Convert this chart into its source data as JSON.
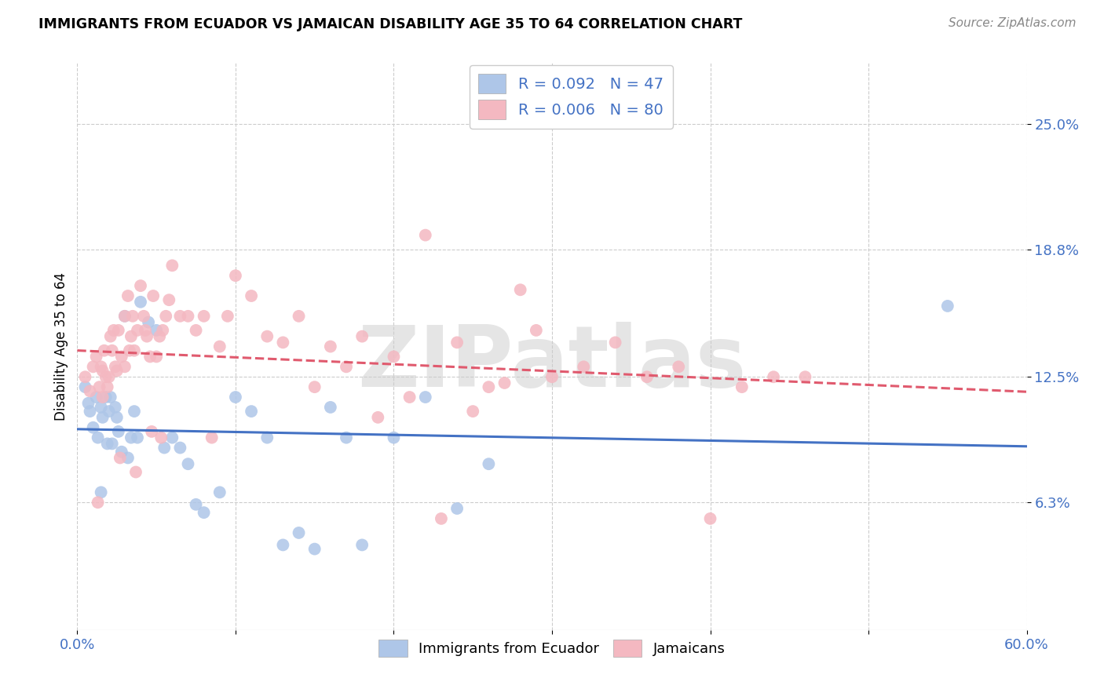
{
  "title": "IMMIGRANTS FROM ECUADOR VS JAMAICAN DISABILITY AGE 35 TO 64 CORRELATION CHART",
  "source": "Source: ZipAtlas.com",
  "ylabel": "Disability Age 35 to 64",
  "xlim": [
    0.0,
    0.6
  ],
  "ylim": [
    0.0,
    0.28
  ],
  "yticks": [
    0.063,
    0.125,
    0.188,
    0.25
  ],
  "ytick_labels": [
    "6.3%",
    "12.5%",
    "18.8%",
    "25.0%"
  ],
  "xticks": [
    0.0,
    0.1,
    0.2,
    0.3,
    0.4,
    0.5,
    0.6
  ],
  "xtick_labels": [
    "0.0%",
    "",
    "",
    "",
    "",
    "",
    "60.0%"
  ],
  "ecuador_color": "#aec6e8",
  "jamaica_color": "#f4b8c1",
  "ecuador_R": 0.092,
  "ecuador_N": 47,
  "jamaica_R": 0.006,
  "jamaica_N": 80,
  "trend_ecuador_color": "#4472c4",
  "trend_jamaica_color": "#e05a6e",
  "watermark": "ZIPatlas",
  "legend_label_ecuador": "Immigrants from Ecuador",
  "legend_label_jamaica": "Jamaicans",
  "ecuador_x": [
    0.005,
    0.007,
    0.008,
    0.01,
    0.012,
    0.013,
    0.015,
    0.016,
    0.018,
    0.019,
    0.02,
    0.021,
    0.022,
    0.024,
    0.025,
    0.026,
    0.028,
    0.03,
    0.032,
    0.034,
    0.036,
    0.038,
    0.04,
    0.045,
    0.05,
    0.055,
    0.06,
    0.065,
    0.07,
    0.075,
    0.08,
    0.09,
    0.1,
    0.11,
    0.12,
    0.13,
    0.14,
    0.15,
    0.16,
    0.17,
    0.18,
    0.2,
    0.22,
    0.24,
    0.26,
    0.55,
    0.015
  ],
  "ecuador_y": [
    0.12,
    0.112,
    0.108,
    0.1,
    0.115,
    0.095,
    0.11,
    0.105,
    0.115,
    0.092,
    0.108,
    0.115,
    0.092,
    0.11,
    0.105,
    0.098,
    0.088,
    0.155,
    0.085,
    0.095,
    0.108,
    0.095,
    0.162,
    0.152,
    0.148,
    0.09,
    0.095,
    0.09,
    0.082,
    0.062,
    0.058,
    0.068,
    0.115,
    0.108,
    0.095,
    0.042,
    0.048,
    0.04,
    0.11,
    0.095,
    0.042,
    0.095,
    0.115,
    0.06,
    0.082,
    0.16,
    0.068
  ],
  "jamaica_x": [
    0.005,
    0.008,
    0.01,
    0.012,
    0.014,
    0.016,
    0.016,
    0.018,
    0.019,
    0.02,
    0.021,
    0.022,
    0.024,
    0.025,
    0.026,
    0.028,
    0.03,
    0.03,
    0.032,
    0.034,
    0.035,
    0.036,
    0.038,
    0.04,
    0.042,
    0.044,
    0.046,
    0.048,
    0.05,
    0.052,
    0.054,
    0.056,
    0.058,
    0.06,
    0.065,
    0.07,
    0.075,
    0.08,
    0.085,
    0.09,
    0.095,
    0.1,
    0.11,
    0.12,
    0.13,
    0.14,
    0.15,
    0.16,
    0.17,
    0.18,
    0.19,
    0.2,
    0.21,
    0.22,
    0.23,
    0.24,
    0.25,
    0.26,
    0.27,
    0.28,
    0.29,
    0.3,
    0.32,
    0.34,
    0.36,
    0.38,
    0.4,
    0.42,
    0.44,
    0.46,
    0.013,
    0.015,
    0.017,
    0.023,
    0.027,
    0.033,
    0.037,
    0.043,
    0.047,
    0.053
  ],
  "jamaica_y": [
    0.125,
    0.118,
    0.13,
    0.135,
    0.12,
    0.128,
    0.115,
    0.125,
    0.12,
    0.125,
    0.145,
    0.138,
    0.13,
    0.128,
    0.148,
    0.135,
    0.13,
    0.155,
    0.165,
    0.145,
    0.155,
    0.138,
    0.148,
    0.17,
    0.155,
    0.145,
    0.135,
    0.165,
    0.135,
    0.145,
    0.148,
    0.155,
    0.163,
    0.18,
    0.155,
    0.155,
    0.148,
    0.155,
    0.095,
    0.14,
    0.155,
    0.175,
    0.165,
    0.145,
    0.142,
    0.155,
    0.12,
    0.14,
    0.13,
    0.145,
    0.105,
    0.135,
    0.115,
    0.195,
    0.055,
    0.142,
    0.108,
    0.12,
    0.122,
    0.168,
    0.148,
    0.125,
    0.13,
    0.142,
    0.125,
    0.13,
    0.055,
    0.12,
    0.125,
    0.125,
    0.063,
    0.13,
    0.138,
    0.148,
    0.085,
    0.138,
    0.078,
    0.148,
    0.098,
    0.095
  ]
}
